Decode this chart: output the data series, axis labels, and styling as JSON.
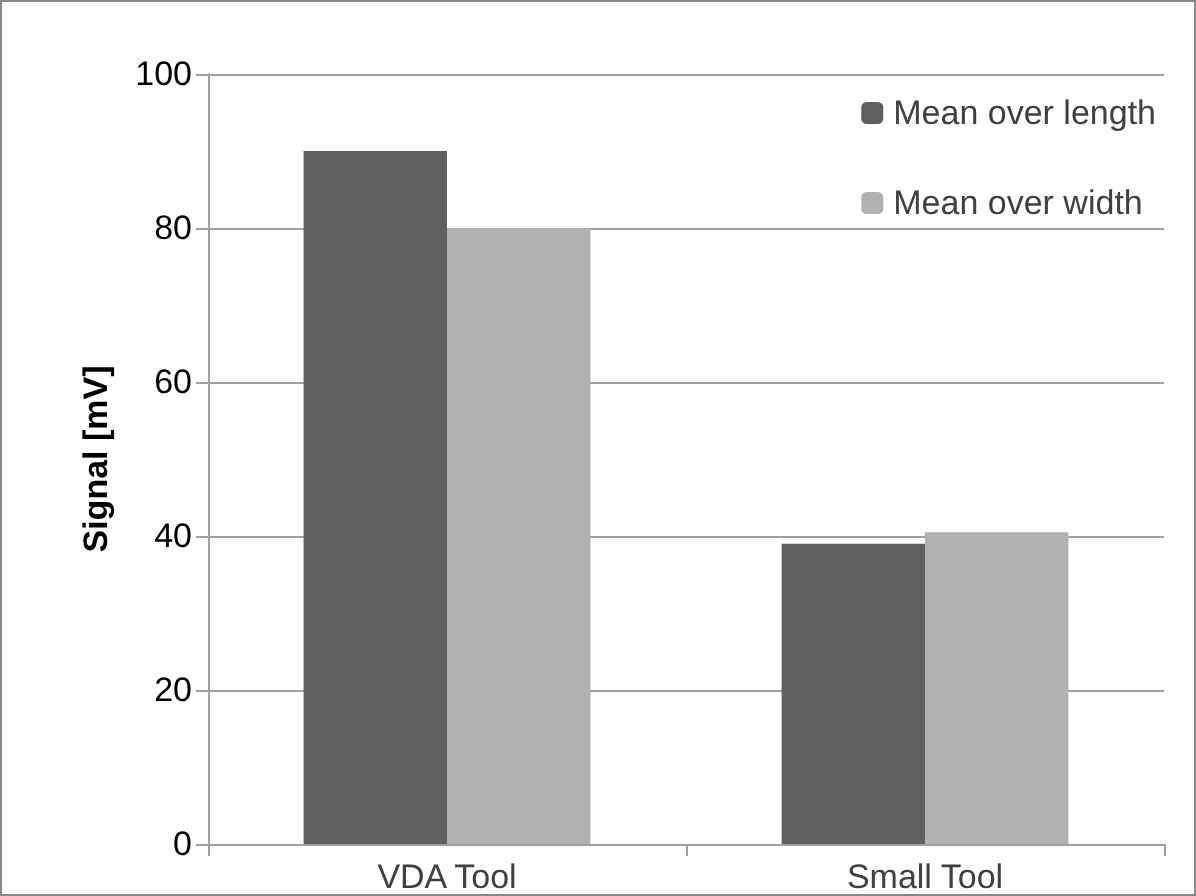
{
  "chart_data": {
    "type": "bar",
    "ylabel": "Signal [mV]",
    "categories": [
      "VDA Tool",
      "Small Tool"
    ],
    "series": [
      {
        "name": "Mean over length",
        "color": "#5f5f5f",
        "values": [
          90,
          39
        ]
      },
      {
        "name": "Mean over width",
        "color": "#b2b2b2",
        "values": [
          80,
          40.5
        ]
      }
    ],
    "ylim": [
      0,
      100
    ],
    "yticks": [
      0,
      20,
      40,
      60,
      80,
      100
    ],
    "grid": "y",
    "legend": "top right"
  }
}
